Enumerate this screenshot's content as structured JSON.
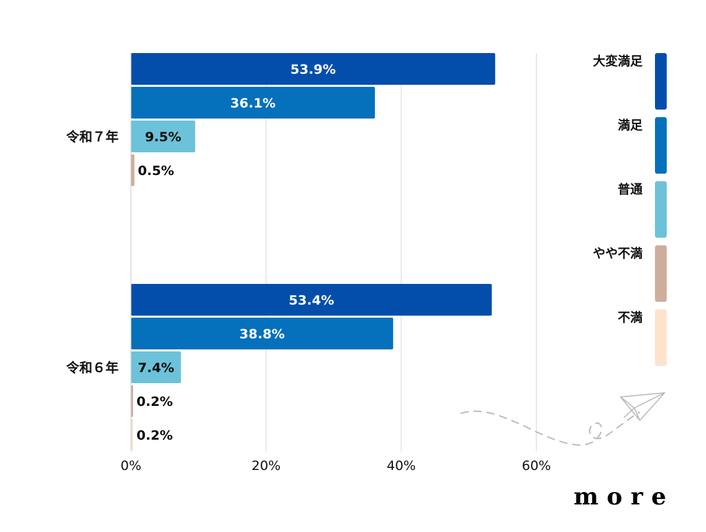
{
  "chart_data": {
    "type": "bar",
    "orientation": "horizontal",
    "xlim": [
      0,
      60
    ],
    "x_ticks": [
      0,
      20,
      40,
      60
    ],
    "x_tick_format": "{v}%",
    "grid": true,
    "legend_position": "right",
    "categories": [
      "令和７年",
      "令和６年"
    ],
    "series": [
      {
        "name": "大変満足",
        "color": "#044eab",
        "values": [
          53.9,
          53.4
        ],
        "labels": [
          "53.9%",
          "53.4%"
        ],
        "label_inside": true
      },
      {
        "name": "満足",
        "color": "#0570bb",
        "values": [
          36.1,
          38.8
        ],
        "labels": [
          "36.1%",
          "38.8%"
        ],
        "label_inside": true
      },
      {
        "name": "普通",
        "color": "#6cc2d9",
        "values": [
          9.5,
          7.4
        ],
        "labels": [
          "9.5%",
          "7.4%"
        ],
        "label_inside": true
      },
      {
        "name": "やや不満",
        "color": "#cdae9b",
        "values": [
          0.5,
          0.2
        ],
        "labels": [
          "0.5%",
          "0.2%"
        ],
        "label_inside": false
      },
      {
        "name": "不満",
        "color": "#fde3cc",
        "values": [
          null,
          0.2
        ],
        "labels": [
          null,
          "0.2%"
        ],
        "label_inside": false
      }
    ]
  },
  "branding": {
    "logo_text": "more",
    "logo_color": "#0b4fa8"
  },
  "decoration": {
    "icon": "paper-plane-icon"
  }
}
